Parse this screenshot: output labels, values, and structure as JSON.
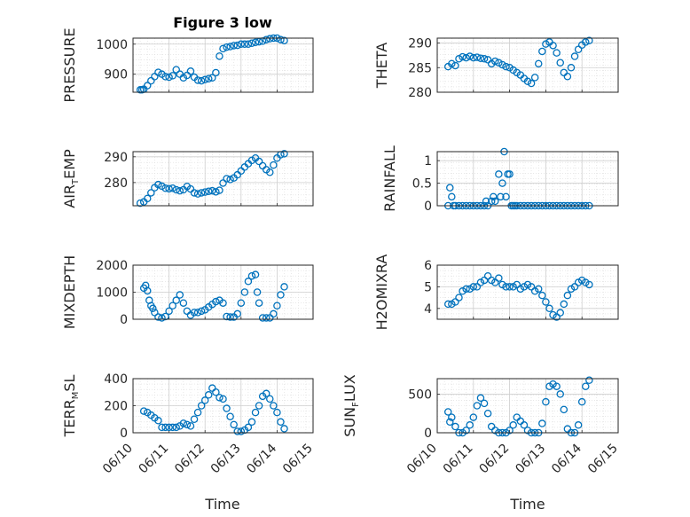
{
  "figure": {
    "title": "Figure 3 low",
    "xlabel": "Time",
    "x_tick_labels": [
      "06/10",
      "06/11",
      "06/12",
      "06/13",
      "06/14",
      "06/15"
    ],
    "marker_color": "#0072BD"
  },
  "chart_data": [
    {
      "type": "scatter",
      "title": "Figure 3 low",
      "ylabel": "PRESSURE",
      "ylabel_main": "PRESSURE",
      "ylabel_sub": "",
      "ylabel_tail": "",
      "xlim": [
        0,
        5
      ],
      "ylim": [
        840,
        1020
      ],
      "yticks": [
        900,
        1000
      ],
      "grid": true,
      "x": [
        0.2,
        0.25,
        0.3,
        0.4,
        0.5,
        0.6,
        0.7,
        0.8,
        0.9,
        1.0,
        1.1,
        1.2,
        1.3,
        1.4,
        1.5,
        1.6,
        1.7,
        1.8,
        1.9,
        2.0,
        2.1,
        2.2,
        2.3,
        2.4,
        2.5,
        2.6,
        2.7,
        2.8,
        2.9,
        3.0,
        3.1,
        3.2,
        3.3,
        3.4,
        3.5,
        3.6,
        3.7,
        3.8,
        3.9,
        4.0,
        4.1,
        4.2
      ],
      "y": [
        848,
        848,
        850,
        862,
        878,
        892,
        906,
        900,
        892,
        890,
        895,
        915,
        900,
        888,
        896,
        910,
        890,
        880,
        878,
        882,
        885,
        888,
        905,
        960,
        985,
        990,
        992,
        995,
        996,
        1000,
        1000,
        1000,
        1003,
        1006,
        1008,
        1010,
        1015,
        1018,
        1020,
        1020,
        1015,
        1012
      ]
    },
    {
      "type": "scatter",
      "title": "",
      "ylabel": "THETA",
      "ylabel_main": "THETA",
      "ylabel_sub": "",
      "ylabel_tail": "",
      "xlim": [
        0,
        5
      ],
      "ylim": [
        280,
        291
      ],
      "yticks": [
        280,
        285,
        290
      ],
      "grid": true,
      "x": [
        0.3,
        0.4,
        0.5,
        0.6,
        0.7,
        0.8,
        0.9,
        1.0,
        1.1,
        1.2,
        1.3,
        1.4,
        1.5,
        1.6,
        1.7,
        1.8,
        1.9,
        2.0,
        2.1,
        2.2,
        2.3,
        2.4,
        2.5,
        2.6,
        2.7,
        2.8,
        2.9,
        3.0,
        3.1,
        3.2,
        3.3,
        3.4,
        3.5,
        3.6,
        3.7,
        3.8,
        3.9,
        4.0,
        4.1,
        4.2
      ],
      "y": [
        285.2,
        285.8,
        285.4,
        286.8,
        287.2,
        287.0,
        287.3,
        287.0,
        287.1,
        286.9,
        286.8,
        286.6,
        285.8,
        286.3,
        286.0,
        285.6,
        285.2,
        285.0,
        284.5,
        284.0,
        283.5,
        282.8,
        282.2,
        281.8,
        283.0,
        285.8,
        288.3,
        289.8,
        290.2,
        289.5,
        288.0,
        286.0,
        284.0,
        283.2,
        285.0,
        287.3,
        288.7,
        289.6,
        290.2,
        290.5
      ]
    },
    {
      "type": "scatter",
      "title": "",
      "ylabel": "AIR_TEMP",
      "ylabel_main": "AIR",
      "ylabel_sub": "T",
      "ylabel_tail": "EMP",
      "xlim": [
        0,
        5
      ],
      "ylim": [
        271,
        292
      ],
      "yticks": [
        280,
        290
      ],
      "grid": true,
      "x": [
        0.2,
        0.3,
        0.4,
        0.5,
        0.6,
        0.7,
        0.8,
        0.9,
        1.0,
        1.1,
        1.2,
        1.3,
        1.4,
        1.5,
        1.6,
        1.7,
        1.8,
        1.9,
        2.0,
        2.1,
        2.2,
        2.3,
        2.4,
        2.5,
        2.6,
        2.7,
        2.8,
        2.9,
        3.0,
        3.1,
        3.2,
        3.3,
        3.4,
        3.5,
        3.6,
        3.7,
        3.8,
        3.9,
        4.0,
        4.1,
        4.2
      ],
      "y": [
        272.0,
        272.5,
        273.8,
        276.0,
        278.0,
        279.2,
        278.6,
        277.8,
        277.6,
        277.8,
        277.2,
        276.8,
        277.2,
        278.5,
        277.5,
        276.0,
        275.6,
        276.0,
        276.3,
        276.6,
        276.8,
        276.4,
        277.0,
        279.8,
        281.5,
        281.2,
        281.8,
        283.0,
        284.5,
        286.0,
        287.3,
        288.6,
        289.5,
        288.2,
        286.5,
        285.0,
        284.0,
        286.8,
        289.5,
        290.8,
        291.2
      ]
    },
    {
      "type": "scatter",
      "title": "",
      "ylabel": "RAINFALL",
      "ylabel_main": "RAINFALL",
      "ylabel_sub": "",
      "ylabel_tail": "",
      "xlim": [
        0,
        5
      ],
      "ylim": [
        0,
        1.2
      ],
      "yticks": [
        0,
        0.5,
        1
      ],
      "grid": true,
      "x": [
        0.3,
        0.35,
        0.4,
        0.45,
        0.5,
        0.6,
        0.7,
        0.8,
        0.9,
        1.0,
        1.1,
        1.2,
        1.3,
        1.35,
        1.4,
        1.5,
        1.55,
        1.6,
        1.7,
        1.75,
        1.8,
        1.85,
        1.9,
        1.95,
        2.0,
        2.05,
        2.1,
        2.15,
        2.2,
        2.3,
        2.4,
        2.5,
        2.6,
        2.7,
        2.8,
        2.9,
        3.0,
        3.1,
        3.2,
        3.3,
        3.4,
        3.5,
        3.6,
        3.7,
        3.8,
        3.9,
        4.0,
        4.1,
        4.2
      ],
      "y": [
        0,
        0.4,
        0.2,
        0,
        0,
        0,
        0,
        0,
        0,
        0,
        0,
        0,
        0,
        0.1,
        0,
        0.1,
        0.2,
        0.1,
        0.7,
        0.2,
        0.5,
        1.2,
        0.2,
        0.7,
        0.7,
        0,
        0,
        0,
        0,
        0,
        0,
        0,
        0,
        0,
        0,
        0,
        0,
        0,
        0,
        0,
        0,
        0,
        0,
        0,
        0,
        0,
        0,
        0,
        0
      ]
    },
    {
      "type": "scatter",
      "title": "",
      "ylabel": "MIXDEPTH",
      "ylabel_main": "MIXDEPTH",
      "ylabel_sub": "",
      "ylabel_tail": "",
      "xlim": [
        0,
        5
      ],
      "ylim": [
        0,
        2000
      ],
      "yticks": [
        0,
        1000,
        2000
      ],
      "grid": true,
      "x": [
        0.3,
        0.35,
        0.4,
        0.45,
        0.5,
        0.55,
        0.6,
        0.7,
        0.8,
        0.9,
        1.0,
        1.1,
        1.2,
        1.3,
        1.4,
        1.5,
        1.6,
        1.7,
        1.8,
        1.9,
        2.0,
        2.1,
        2.2,
        2.3,
        2.4,
        2.5,
        2.6,
        2.7,
        2.8,
        2.9,
        3.0,
        3.1,
        3.2,
        3.3,
        3.4,
        3.45,
        3.5,
        3.6,
        3.7,
        3.8,
        3.9,
        4.0,
        4.1,
        4.2
      ],
      "y": [
        1150,
        1250,
        1050,
        700,
        500,
        400,
        250,
        80,
        50,
        100,
        300,
        500,
        700,
        900,
        600,
        300,
        150,
        250,
        250,
        300,
        350,
        450,
        550,
        650,
        700,
        600,
        100,
        80,
        80,
        200,
        600,
        1000,
        1400,
        1600,
        1650,
        1000,
        600,
        50,
        50,
        50,
        200,
        500,
        900,
        1200
      ]
    },
    {
      "type": "scatter",
      "title": "",
      "ylabel": "H2OMIXRA",
      "ylabel_main": "H2OMIXRA",
      "ylabel_sub": "",
      "ylabel_tail": "",
      "xlim": [
        0,
        5
      ],
      "ylim": [
        3.5,
        6
      ],
      "yticks": [
        4,
        5,
        6
      ],
      "grid": true,
      "x": [
        0.3,
        0.4,
        0.5,
        0.6,
        0.7,
        0.8,
        0.9,
        1.0,
        1.1,
        1.2,
        1.3,
        1.4,
        1.5,
        1.6,
        1.7,
        1.8,
        1.9,
        2.0,
        2.1,
        2.2,
        2.3,
        2.4,
        2.5,
        2.6,
        2.7,
        2.8,
        2.9,
        3.0,
        3.1,
        3.2,
        3.3,
        3.4,
        3.5,
        3.6,
        3.7,
        3.8,
        3.9,
        4.0,
        4.1,
        4.2
      ],
      "y": [
        4.2,
        4.2,
        4.3,
        4.5,
        4.8,
        4.9,
        4.9,
        5.0,
        5.0,
        5.2,
        5.3,
        5.5,
        5.3,
        5.2,
        5.4,
        5.1,
        5.0,
        5.0,
        5.0,
        5.1,
        4.9,
        5.0,
        5.1,
        5.0,
        4.8,
        4.9,
        4.6,
        4.3,
        4.0,
        3.7,
        3.6,
        3.8,
        4.2,
        4.6,
        4.9,
        5.0,
        5.2,
        5.3,
        5.2,
        5.1
      ]
    },
    {
      "type": "scatter",
      "title": "",
      "ylabel": "TERR_MSL",
      "ylabel_main": "TERR",
      "ylabel_sub": "M",
      "ylabel_tail": "SL",
      "xlim": [
        0,
        5
      ],
      "ylim": [
        0,
        400
      ],
      "yticks": [
        0,
        200,
        400
      ],
      "grid": true,
      "x": [
        0.3,
        0.4,
        0.5,
        0.6,
        0.7,
        0.8,
        0.9,
        1.0,
        1.1,
        1.2,
        1.3,
        1.4,
        1.5,
        1.6,
        1.7,
        1.8,
        1.9,
        2.0,
        2.1,
        2.2,
        2.3,
        2.4,
        2.5,
        2.6,
        2.7,
        2.8,
        2.9,
        3.0,
        3.1,
        3.2,
        3.3,
        3.4,
        3.5,
        3.6,
        3.7,
        3.8,
        3.9,
        4.0,
        4.1,
        4.2
      ],
      "y": [
        160,
        150,
        130,
        110,
        90,
        40,
        40,
        40,
        40,
        40,
        50,
        70,
        60,
        50,
        100,
        150,
        200,
        240,
        280,
        330,
        300,
        260,
        250,
        180,
        120,
        60,
        10,
        10,
        20,
        40,
        80,
        150,
        200,
        270,
        290,
        250,
        200,
        150,
        80,
        30
      ]
    },
    {
      "type": "scatter",
      "title": "",
      "ylabel": "SUN_FLUX",
      "ylabel_main": "SUN",
      "ylabel_sub": "F",
      "ylabel_tail": "LUX",
      "xlim": [
        0,
        5
      ],
      "ylim": [
        0,
        700
      ],
      "yticks": [
        0,
        500
      ],
      "grid": true,
      "x": [
        0.3,
        0.35,
        0.4,
        0.5,
        0.6,
        0.7,
        0.8,
        0.9,
        1.0,
        1.1,
        1.2,
        1.3,
        1.4,
        1.5,
        1.6,
        1.7,
        1.8,
        1.9,
        2.0,
        2.1,
        2.2,
        2.3,
        2.4,
        2.5,
        2.6,
        2.7,
        2.8,
        2.9,
        3.0,
        3.1,
        3.2,
        3.3,
        3.4,
        3.5,
        3.6,
        3.7,
        3.8,
        3.9,
        4.0,
        4.1,
        4.2
      ],
      "y": [
        270,
        140,
        200,
        80,
        0,
        0,
        30,
        100,
        200,
        350,
        450,
        380,
        250,
        80,
        30,
        0,
        0,
        0,
        30,
        100,
        200,
        150,
        100,
        30,
        0,
        0,
        0,
        120,
        400,
        600,
        630,
        600,
        500,
        300,
        50,
        0,
        0,
        100,
        400,
        600,
        680
      ]
    }
  ]
}
